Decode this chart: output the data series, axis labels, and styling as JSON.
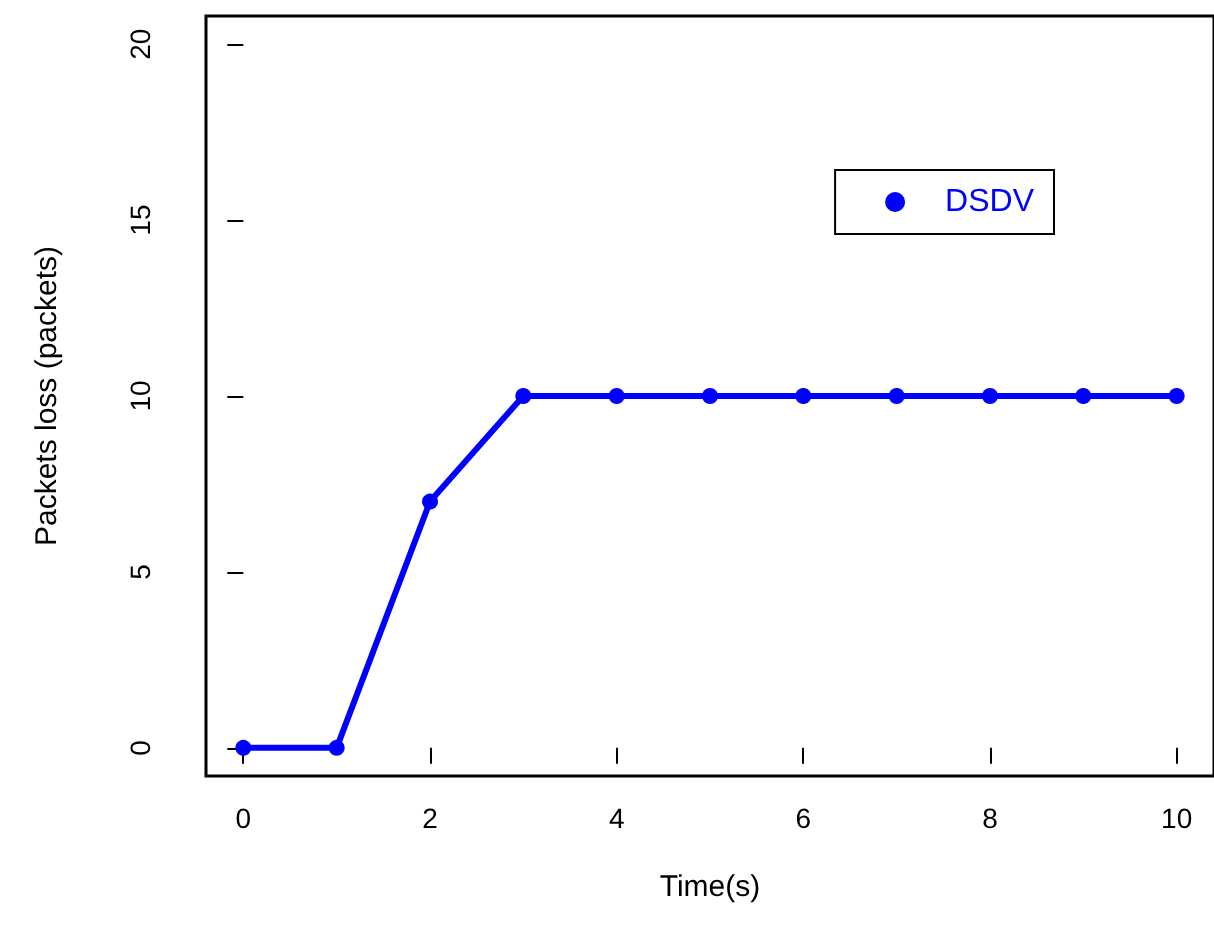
{
  "chart_data": {
    "type": "line",
    "xlabel": "Time(s)",
    "ylabel": "Packets loss (packets)",
    "x": [
      0,
      1,
      2,
      3,
      4,
      5,
      6,
      7,
      8,
      9,
      10
    ],
    "series": [
      {
        "name": "DSDV",
        "color": "#0000ff",
        "values": [
          0,
          0,
          7,
          10,
          10,
          10,
          10,
          10,
          10,
          10,
          10
        ]
      }
    ],
    "xlim": [
      -0.4,
      10.4
    ],
    "xticks": [
      0,
      2,
      4,
      6,
      8,
      10
    ],
    "ylim": [
      -0.8,
      20.8
    ],
    "yticks": [
      0,
      5,
      10,
      15,
      20
    ],
    "grid": false,
    "legend": "top right",
    "marker": "circle",
    "line_style": "solid"
  }
}
